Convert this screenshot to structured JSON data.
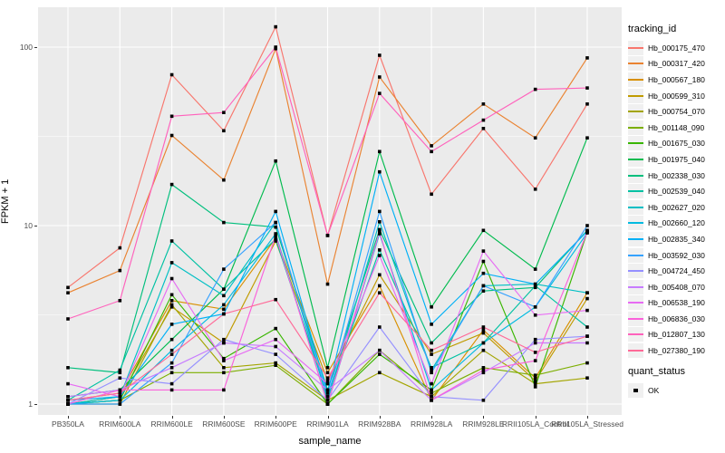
{
  "chart_data": {
    "type": "line",
    "title": "",
    "xlabel": "sample_name",
    "ylabel": "FPKM + 1",
    "x_categories": [
      "PB350LA",
      "RRIM600LA",
      "RRIM600LE",
      "RRIM600SE",
      "RRIM600PE",
      "RRIM901LA",
      "RRIM928BA",
      "RRIM928LA",
      "RRIM928LE",
      "RRII105LA_Control",
      "RRII105LA_Stressed"
    ],
    "y_axis": {
      "scale": "log10",
      "ticks": [
        1,
        10,
        100
      ],
      "minor_ticks": [
        3.162,
        31.62
      ],
      "range": [
        0.85,
        160
      ],
      "grid": true
    },
    "panel_background": "#EBEBEB",
    "grid_color": "#FFFFFF",
    "marker": {
      "shape": "square",
      "color": "#000000",
      "size": 3.6
    },
    "legend": {
      "position": "right",
      "color_title": "tracking_id",
      "shape_title": "quant_status",
      "shape_items": [
        {
          "label": "OK",
          "marker": "black-square"
        }
      ]
    },
    "series": [
      {
        "name": "Hb_000175_470",
        "color": "#F8766D",
        "values": [
          4.5,
          7.5,
          70,
          34,
          130,
          8.8,
          90,
          15,
          35,
          16,
          48
        ]
      },
      {
        "name": "Hb_000317_420",
        "color": "#EA8331",
        "values": [
          4.2,
          5.6,
          32,
          18,
          98,
          4.7,
          68,
          28,
          48,
          31,
          87
        ]
      },
      {
        "name": "Hb_000567_180",
        "color": "#D89000",
        "values": [
          1.05,
          1.15,
          3.8,
          3.4,
          8.5,
          1.5,
          4.6,
          1.05,
          2.6,
          1.4,
          4.2
        ]
      },
      {
        "name": "Hb_000599_310",
        "color": "#C09B00",
        "values": [
          1.0,
          1.1,
          3.5,
          2.2,
          8.2,
          1.35,
          5.3,
          1.9,
          2.5,
          1.35,
          3.9
        ]
      },
      {
        "name": "Hb_000754_070",
        "color": "#A3A500",
        "values": [
          1.0,
          1.0,
          3.6,
          1.6,
          1.7,
          1.05,
          1.5,
          1.1,
          2.0,
          1.3,
          1.4
        ]
      },
      {
        "name": "Hb_001148_090",
        "color": "#7CAE00",
        "values": [
          1.0,
          1.05,
          1.5,
          1.5,
          1.65,
          1.0,
          2.0,
          1.15,
          1.6,
          1.45,
          1.7
        ]
      },
      {
        "name": "Hb_001675_030",
        "color": "#39B600",
        "values": [
          1.0,
          1.05,
          4.1,
          1.8,
          2.65,
          1.0,
          1.9,
          1.2,
          6.3,
          1.25,
          9.2
        ]
      },
      {
        "name": "Hb_001975_040",
        "color": "#00BB4E",
        "values": [
          1.1,
          1.2,
          2.3,
          4.4,
          23,
          1.6,
          26,
          3.5,
          9.4,
          5.7,
          31
        ]
      },
      {
        "name": "Hb_002338_030",
        "color": "#00BF7D",
        "values": [
          1.6,
          1.5,
          17,
          10.4,
          9.8,
          1.2,
          9.5,
          2.2,
          4.3,
          4.5,
          9.4
        ]
      },
      {
        "name": "Hb_002539_040",
        "color": "#00C1A3",
        "values": [
          1.05,
          1.55,
          8.2,
          4.4,
          8.4,
          1.1,
          7.3,
          1.6,
          2.2,
          4.6,
          2.7
        ]
      },
      {
        "name": "Hb_002627_020",
        "color": "#00BFC4",
        "values": [
          1.0,
          1.1,
          6.2,
          4.05,
          10.4,
          1.05,
          10.5,
          1.55,
          4.6,
          4.7,
          4.2
        ]
      },
      {
        "name": "Hb_002660_120",
        "color": "#00BAE0",
        "values": [
          1.0,
          1.05,
          2.0,
          3.6,
          9.0,
          1.0,
          9.0,
          1.2,
          2.2,
          3.5,
          9.1
        ]
      },
      {
        "name": "Hb_002835_340",
        "color": "#00B0F6",
        "values": [
          1.05,
          1.1,
          2.8,
          3.2,
          12,
          1.15,
          20,
          2.8,
          5.4,
          4.7,
          9.3
        ]
      },
      {
        "name": "Hb_003592_030",
        "color": "#35A2FF",
        "values": [
          1.0,
          1.0,
          1.7,
          5.7,
          10.4,
          1.1,
          12,
          1.5,
          4.6,
          3.5,
          10
        ]
      },
      {
        "name": "Hb_004724_450",
        "color": "#9590FF",
        "values": [
          1.0,
          1.4,
          1.3,
          2.3,
          1.9,
          1.05,
          2.7,
          1.1,
          1.05,
          2.3,
          2.4
        ]
      },
      {
        "name": "Hb_005408_070",
        "color": "#C77CFF",
        "values": [
          1.1,
          1.2,
          1.6,
          2.2,
          2.1,
          1.2,
          2.0,
          1.05,
          1.5,
          2.2,
          2.2
        ]
      },
      {
        "name": "Hb_006538_190",
        "color": "#E76BF3",
        "values": [
          1.3,
          1.1,
          5.05,
          1.75,
          2.3,
          1.3,
          6.8,
          1.3,
          7.2,
          3.15,
          3.35
        ]
      },
      {
        "name": "Hb_006836_030",
        "color": "#FA62DB",
        "values": [
          1.0,
          1.2,
          1.2,
          1.2,
          8.8,
          1.0,
          9.2,
          1.05,
          1.55,
          1.75,
          9.2
        ]
      },
      {
        "name": "Hb_012807_130",
        "color": "#FF62BC",
        "values": [
          3.0,
          3.8,
          41,
          43,
          100,
          8.8,
          55,
          26,
          39,
          58,
          59
        ]
      },
      {
        "name": "Hb_027380_190",
        "color": "#FF6A98",
        "values": [
          1.05,
          1.15,
          1.9,
          3.2,
          3.85,
          1.4,
          4.2,
          2.0,
          2.7,
          1.95,
          2.4
        ]
      }
    ]
  }
}
